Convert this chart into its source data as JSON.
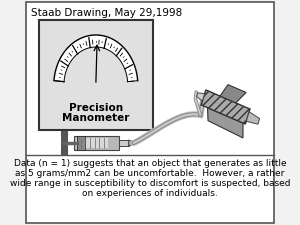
{
  "title": "Staab Drawing, May 29,1998",
  "caption_line1": "Data (n = 1) suggests that an object that generates as little",
  "caption_line2": "as 5 grams/mm2 can be uncomfortable.  However, a rather",
  "caption_line3": "wide range in susceptibility to discomfort is suspected, based",
  "caption_line4": "on experiences of individuals.",
  "manometer_label1": "Precision",
  "manometer_label2": "Manometer",
  "bg_color": "#f2f2f2",
  "box_color": "#ffffff",
  "border_color": "#555555",
  "text_color": "#000000",
  "title_fontsize": 7.5,
  "caption_fontsize": 6.5,
  "manometer_fontsize": 7.5
}
